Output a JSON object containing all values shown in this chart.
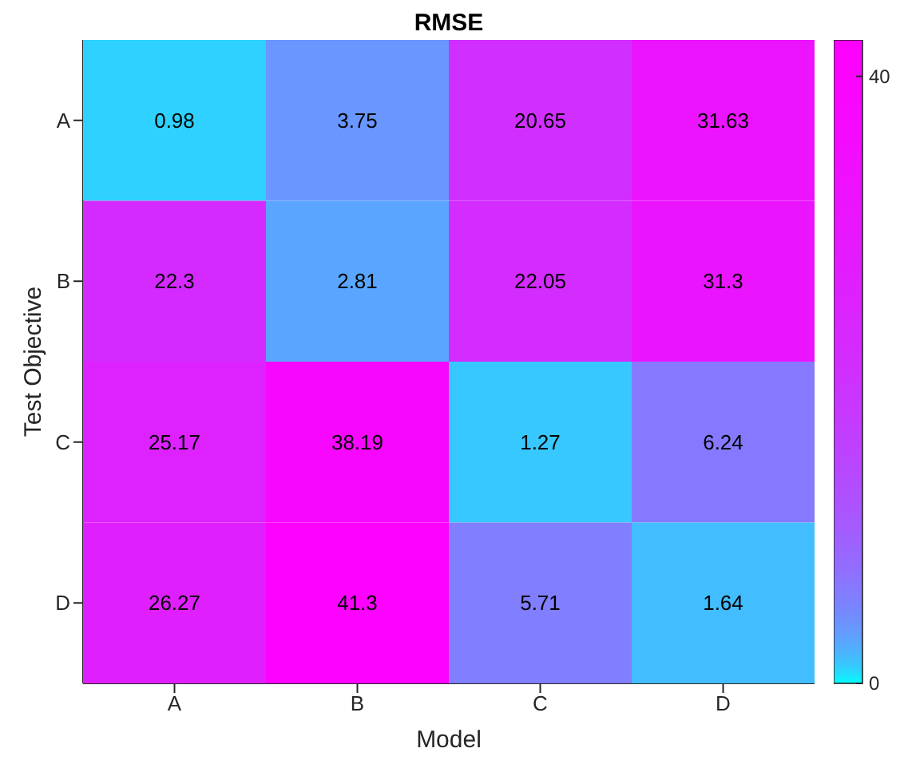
{
  "chart_data": {
    "type": "heatmap",
    "title": "RMSE",
    "xlabel": "Model",
    "ylabel": "Test Objective",
    "categories": [
      "A",
      "B",
      "C",
      "D"
    ],
    "y_categories": [
      "A",
      "B",
      "C",
      "D"
    ],
    "cells": [
      [
        0.98,
        3.75,
        20.65,
        31.63
      ],
      [
        22.3,
        2.81,
        22.05,
        31.3
      ],
      [
        25.17,
        38.19,
        1.27,
        6.24
      ],
      [
        26.27,
        41.3,
        5.71,
        1.64
      ]
    ],
    "data_labels": true,
    "clim": [
      0,
      42.4
    ],
    "cticks": [
      0,
      40
    ]
  }
}
